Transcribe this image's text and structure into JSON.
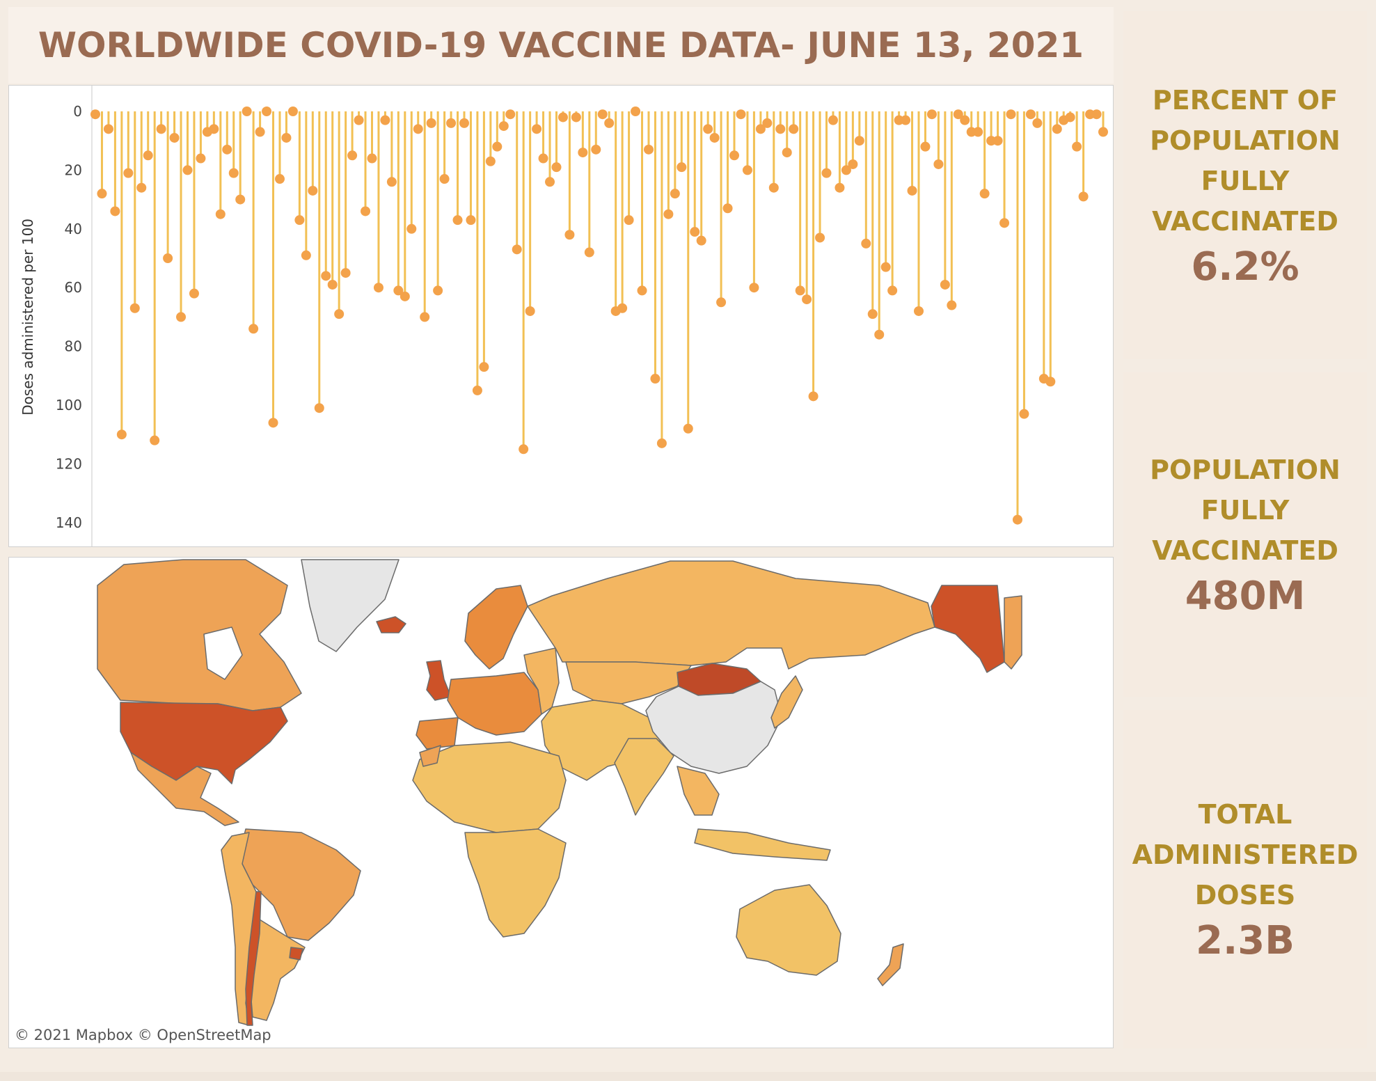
{
  "header": {
    "title": "WORLDWIDE COVID-19 VACCINE DATA- JUNE 13, 2021"
  },
  "kpis": [
    {
      "label": "PERCENT OF\nPOPULATION\nFULLY\nVACCINATED",
      "value": "6.2%"
    },
    {
      "label": "POPULATION\nFULLY\nVACCINATED",
      "value": "480M"
    },
    {
      "label": "TOTAL\nADMINISTERED\nDOSES",
      "value": "2.3B"
    }
  ],
  "map": {
    "attribution": "© 2021 Mapbox  © OpenStreetMap"
  },
  "colors": {
    "stem": "#f2c054",
    "dot": "#f3a24a",
    "kpi_label": "#b08d2a",
    "kpi_value": "#9a6b52",
    "title": "#9a6b52"
  },
  "chart_data": {
    "type": "lollipop",
    "ylabel": "Doses administered per 100",
    "y_axis_inverted": true,
    "ylim": [
      0,
      145
    ],
    "yticks": [
      "0",
      "20",
      "40",
      "60",
      "80",
      "100",
      "120",
      "140"
    ],
    "grid": false,
    "values": [
      1,
      28,
      6,
      34,
      110,
      21,
      67,
      26,
      15,
      112,
      6,
      50,
      9,
      70,
      20,
      62,
      16,
      7,
      6,
      35,
      13,
      21,
      30,
      0,
      74,
      7,
      0,
      106,
      23,
      9,
      0,
      37,
      49,
      27,
      101,
      56,
      59,
      69,
      55,
      15,
      3,
      34,
      16,
      60,
      3,
      24,
      61,
      63,
      40,
      6,
      70,
      4,
      61,
      23,
      4,
      37,
      4,
      37,
      95,
      87,
      17,
      12,
      5,
      1,
      47,
      115,
      68,
      6,
      16,
      24,
      19,
      2,
      42,
      2,
      14,
      48,
      13,
      1,
      4,
      68,
      67,
      37,
      0,
      61,
      13,
      91,
      113,
      35,
      28,
      19,
      108,
      41,
      44,
      6,
      9,
      65,
      33,
      15,
      1,
      20,
      60,
      6,
      4,
      26,
      6,
      14,
      6,
      61,
      64,
      97,
      43,
      21,
      3,
      26,
      20,
      18,
      10,
      45,
      69,
      76,
      53,
      61,
      3,
      3,
      27,
      68,
      12,
      1,
      18,
      59,
      66,
      1,
      3,
      7,
      7,
      28,
      10,
      10,
      38,
      1,
      139,
      103,
      1,
      4,
      91,
      92,
      6,
      3,
      2,
      12,
      29,
      1,
      1,
      7
    ]
  }
}
